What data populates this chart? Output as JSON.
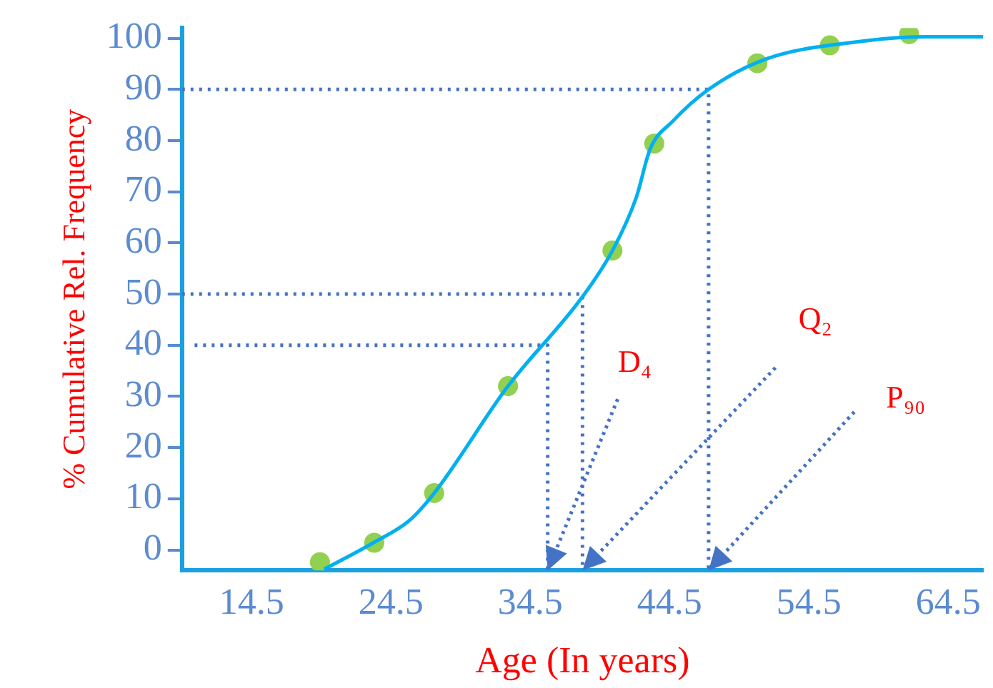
{
  "chart_data": {
    "type": "scatter",
    "xlabel": "Age (In years)",
    "ylabel": "% Cumulative Rel. Frequency",
    "xlim": [
      9.5,
      67
    ],
    "xticks": [
      14.5,
      24.5,
      34.5,
      44.5,
      54.5,
      64.5
    ],
    "ylim": [
      -4,
      102
    ],
    "yticks": [
      0,
      10,
      20,
      30,
      40,
      50,
      60,
      70,
      80,
      90,
      100
    ],
    "grid": false,
    "legend": false,
    "series": [
      {
        "type": "line",
        "color": "#00b0f0",
        "marker": "none",
        "line_style": "solid",
        "x": [
          19.7,
          23.3,
          25.8,
          27.6,
          32.9,
          38.2,
          40.4,
          42.1,
          43.1,
          44.7,
          47.3,
          51.5,
          57.7,
          62.9,
          67
        ],
        "values": [
          -3.8,
          1.5,
          5.7,
          11.1,
          32,
          49.3,
          58.5,
          68.8,
          78.3,
          83.7,
          90,
          96,
          99.2,
          100.3,
          100.3
        ]
      },
      {
        "type": "scatter",
        "color": "#92d050",
        "marker": "circle",
        "x": [
          19.4,
          23.3,
          27.6,
          32.9,
          40.4,
          43.4,
          50.8,
          56,
          61.7
        ],
        "values": [
          -2.4,
          1.4,
          11.1,
          32,
          58.5,
          79.4,
          95.1,
          98.6,
          100.8
        ]
      },
      {
        "type": "line",
        "color": "#4472c4",
        "marker": "none",
        "line_style": "dotted",
        "x": [
          10.4,
          35.75,
          35.75
        ],
        "values": [
          40,
          40,
          -4
        ]
      },
      {
        "type": "line",
        "color": "#4472c4",
        "marker": "none",
        "line_style": "dotted",
        "x": [
          9.5,
          38.25,
          38.25
        ],
        "values": [
          50,
          50,
          -4
        ]
      },
      {
        "type": "line",
        "color": "#4472c4",
        "marker": "none",
        "line_style": "dotted",
        "x": [
          9.5,
          47.3,
          47.3
        ],
        "values": [
          90,
          90,
          -4
        ]
      }
    ],
    "annotations": [
      "D₄",
      "Q₂",
      "P₉₀"
    ]
  }
}
